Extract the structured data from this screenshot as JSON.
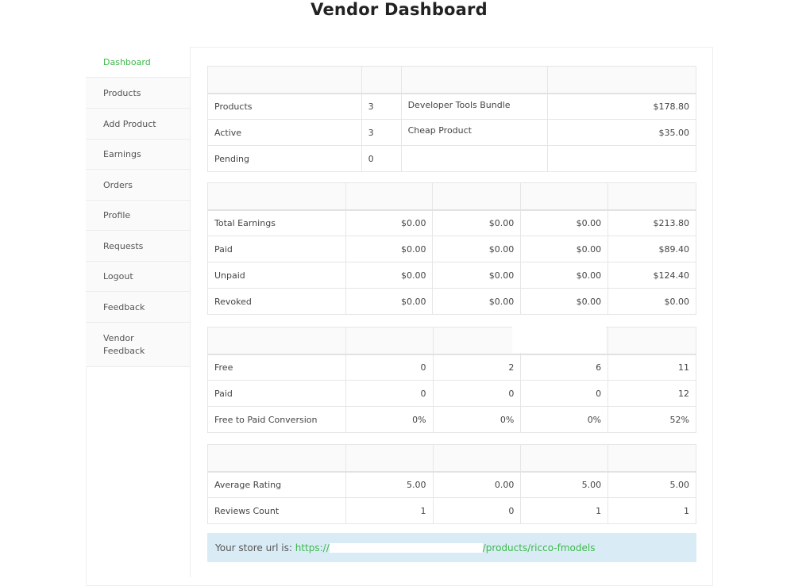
{
  "page": {
    "title": "Vendor Dashboard"
  },
  "sidebar": {
    "items": [
      {
        "label": "Dashboard"
      },
      {
        "label": "Products"
      },
      {
        "label": "Add Product"
      },
      {
        "label": "Earnings"
      },
      {
        "label": "Orders"
      },
      {
        "label": "Profile"
      },
      {
        "label": "Requests"
      },
      {
        "label": "Logout"
      },
      {
        "label": "Feedback"
      },
      {
        "label": "Vendor Feedback"
      }
    ],
    "active_color": "#3db84a"
  },
  "products_table": {
    "rows": [
      {
        "label": "Products",
        "count": "3",
        "name": "Developer Tools Bundle",
        "amount": "$178.80"
      },
      {
        "label": "Active",
        "count": "3",
        "name": "Cheap Product",
        "amount": "$35.00"
      },
      {
        "label": "Pending",
        "count": "0",
        "name": "",
        "amount": ""
      }
    ]
  },
  "earnings_table": {
    "rows": [
      {
        "label": "Total Earnings",
        "c1": "$0.00",
        "c2": "$0.00",
        "c3": "$0.00",
        "c4": "$213.80"
      },
      {
        "label": "Paid",
        "c1": "$0.00",
        "c2": "$0.00",
        "c3": "$0.00",
        "c4": "$89.40"
      },
      {
        "label": "Unpaid",
        "c1": "$0.00",
        "c2": "$0.00",
        "c3": "$0.00",
        "c4": "$124.40"
      },
      {
        "label": "Revoked",
        "c1": "$0.00",
        "c2": "$0.00",
        "c3": "$0.00",
        "c4": "$0.00"
      }
    ]
  },
  "orders_table": {
    "rows": [
      {
        "label": "Free",
        "c1": "0",
        "c2": "2",
        "c3": "6",
        "c4": "11"
      },
      {
        "label": "Paid",
        "c1": "0",
        "c2": "0",
        "c3": "0",
        "c4": "12"
      },
      {
        "label": "Free to Paid Conversion",
        "c1": "0%",
        "c2": "0%",
        "c3": "0%",
        "c4": "52%"
      }
    ]
  },
  "reviews_table": {
    "rows": [
      {
        "label": "Average Rating",
        "c1": "5.00",
        "c2": "0.00",
        "c3": "5.00",
        "c4": "5.00"
      },
      {
        "label": "Reviews Count",
        "c1": "1",
        "c2": "0",
        "c3": "1",
        "c4": "1"
      }
    ]
  },
  "store_notice": {
    "prefix": "Your store url is: ",
    "link_start": "https://",
    "link_end": "/products/ricco-fmodels"
  }
}
